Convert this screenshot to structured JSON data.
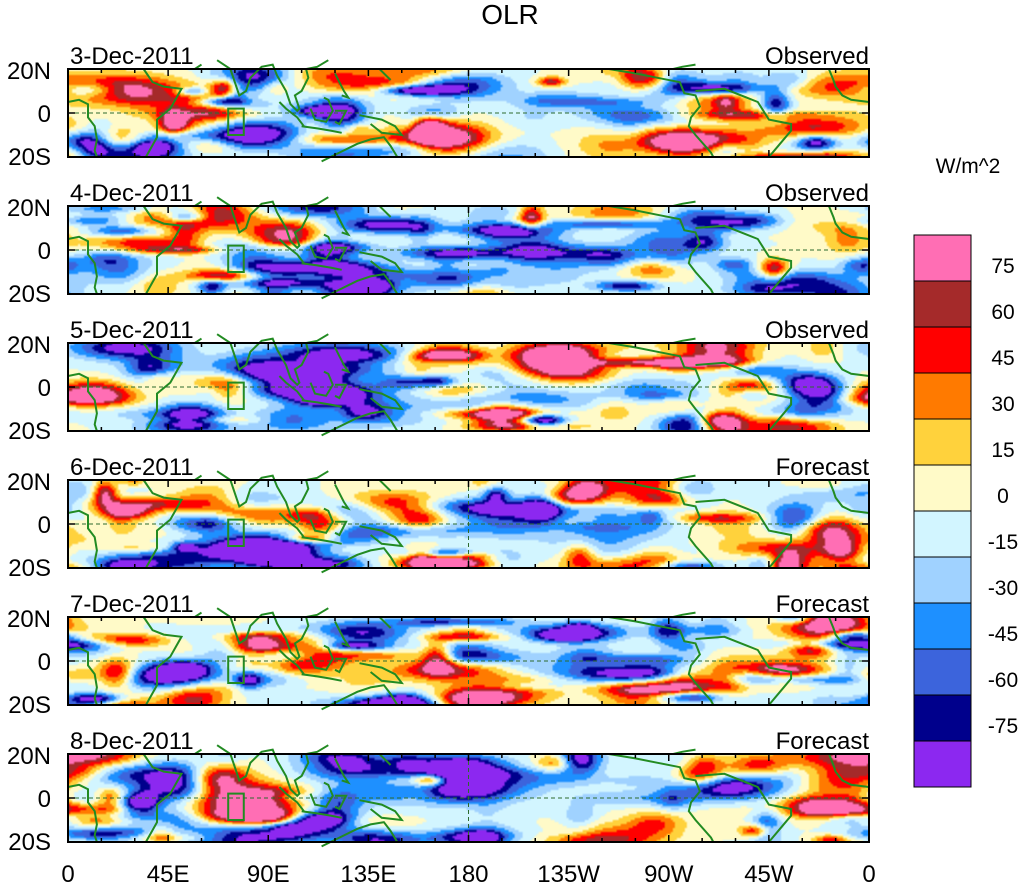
{
  "chart_data": {
    "type": "heatmap",
    "title": "OLR",
    "units": "W/m^2",
    "x_ticks": [
      "0",
      "45E",
      "90E",
      "135E",
      "180",
      "135W",
      "90W",
      "45W",
      "0"
    ],
    "y_ticks": [
      "20N",
      "0",
      "20S"
    ],
    "xlim_deg_east": [
      0,
      360
    ],
    "ylim_deg": [
      -20,
      20
    ],
    "panels": [
      {
        "date": "3-Dec-2011",
        "status": "Observed"
      },
      {
        "date": "4-Dec-2011",
        "status": "Observed"
      },
      {
        "date": "5-Dec-2011",
        "status": "Observed"
      },
      {
        "date": "6-Dec-2011",
        "status": "Forecast"
      },
      {
        "date": "7-Dec-2011",
        "status": "Forecast"
      },
      {
        "date": "8-Dec-2011",
        "status": "Forecast"
      }
    ],
    "colorbar": {
      "levels": [
        "75",
        "60",
        "45",
        "30",
        "15",
        "0",
        "-15",
        "-30",
        "-45",
        "-60",
        "-75"
      ],
      "colors": [
        "#ff6eb4",
        "#a52a2a",
        "#ff0000",
        "#ff7a00",
        "#ffd23c",
        "#fffac8",
        "#d2f5ff",
        "#a0d2ff",
        "#1e90ff",
        "#3c64dc",
        "#00008c",
        "#8c28f0"
      ]
    }
  }
}
